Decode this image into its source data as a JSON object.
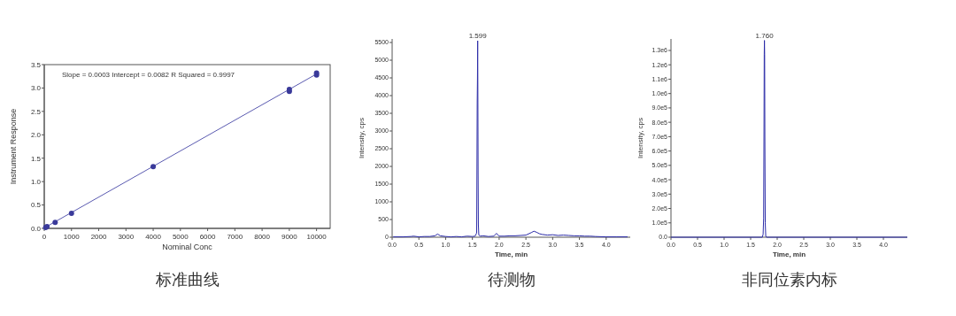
{
  "chart_data": [
    {
      "type": "scatter",
      "title": "标准曲线",
      "xlabel": "Nominal Conc",
      "ylabel": "Instrument Response",
      "annotations": [
        "Slope = 0.0003 Intercept = 0.0082 R Squared = 0.9997"
      ],
      "marker": "circle",
      "xlim": [
        0,
        10500
      ],
      "xticks": [
        0,
        1000,
        2000,
        3000,
        4000,
        5000,
        6000,
        7000,
        8000,
        9000,
        10000
      ],
      "ylim": [
        0,
        3.5
      ],
      "yticks": [
        {
          "value": 0,
          "label": "0.0"
        },
        {
          "value": 0.5,
          "label": "0.5"
        },
        {
          "value": 1,
          "label": "1.0"
        },
        {
          "value": 1.5,
          "label": "1.5"
        },
        {
          "value": 2,
          "label": "2.0"
        },
        {
          "value": 2.5,
          "label": "2.5"
        },
        {
          "value": 3,
          "label": "3.0"
        },
        {
          "value": 3.5,
          "label": "3.5"
        }
      ],
      "series": [
        {
          "color": "#3a3a9a",
          "x": [
            50,
            100,
            400,
            1000,
            4000,
            9000,
            9000,
            10000,
            10000
          ],
          "values": [
            0.02,
            0.04,
            0.13,
            0.32,
            1.32,
            2.93,
            2.97,
            3.28,
            3.32
          ]
        },
        {
          "type": "line",
          "color": "#5a5ab0",
          "marker": "none",
          "x": [
            0,
            10000
          ],
          "values": [
            0.01,
            3.3
          ]
        }
      ]
    },
    {
      "type": "line",
      "title": "待测物",
      "xlabel": "Time, min",
      "ylabel": "Intensity, cps",
      "annotations": [
        {
          "text": "1.599",
          "x": 1.599,
          "y": 5550
        }
      ],
      "xlim": [
        0,
        4.45
      ],
      "xticks": [
        {
          "value": 0,
          "label": "0.0"
        },
        {
          "value": 0.5,
          "label": "0.5"
        },
        {
          "value": 1,
          "label": "1.0"
        },
        {
          "value": 1.5,
          "label": "1.5"
        },
        {
          "value": 2,
          "label": "2.0"
        },
        {
          "value": 2.5,
          "label": "2.5"
        },
        {
          "value": 3,
          "label": "3.0"
        },
        {
          "value": 3.5,
          "label": "3.5"
        },
        {
          "value": 4,
          "label": "4.0"
        }
      ],
      "ylim": [
        0,
        5600
      ],
      "yticks": [
        0,
        500,
        1000,
        1500,
        2000,
        2500,
        3000,
        3500,
        4000,
        4500,
        5000,
        5500
      ],
      "series": [
        {
          "color": "#2b2ba8",
          "x": [
            0.02,
            0.2,
            0.35,
            0.4,
            0.5,
            0.6,
            0.7,
            0.8,
            0.85,
            0.9,
            1.0,
            1.1,
            1.2,
            1.3,
            1.4,
            1.5,
            1.55,
            1.58,
            1.585,
            1.59,
            1.595,
            1.599,
            1.603,
            1.607,
            1.612,
            1.62,
            1.65,
            1.7,
            1.8,
            1.9,
            1.95,
            2.0,
            2.1,
            2.2,
            2.3,
            2.4,
            2.5,
            2.6,
            2.65,
            2.7,
            2.75,
            2.8,
            2.9,
            3.0,
            3.1,
            3.2,
            3.3,
            3.4,
            3.5,
            3.6,
            3.7,
            3.8,
            4.0,
            4.2,
            4.4
          ],
          "values": [
            10,
            10,
            20,
            30,
            10,
            20,
            20,
            40,
            90,
            40,
            20,
            10,
            20,
            10,
            30,
            20,
            30,
            120,
            1850,
            3800,
            4500,
            5550,
            3800,
            1800,
            350,
            60,
            30,
            40,
            20,
            30,
            110,
            30,
            30,
            40,
            40,
            50,
            60,
            130,
            170,
            140,
            100,
            80,
            60,
            70,
            50,
            60,
            50,
            40,
            40,
            30,
            30,
            20,
            10,
            10,
            10
          ]
        }
      ]
    },
    {
      "type": "line",
      "title": "非同位素内标",
      "xlabel": "Time, min",
      "ylabel": "Intensity, cps",
      "annotations": [
        {
          "text": "1.760",
          "x": 1.76,
          "y": 1370000
        }
      ],
      "xlim": [
        0,
        4.45
      ],
      "xticks": [
        {
          "value": 0,
          "label": "0.0"
        },
        {
          "value": 0.5,
          "label": "0.5"
        },
        {
          "value": 1,
          "label": "1.0"
        },
        {
          "value": 1.5,
          "label": "1.5"
        },
        {
          "value": 2,
          "label": "2.0"
        },
        {
          "value": 2.5,
          "label": "2.5"
        },
        {
          "value": 3,
          "label": "3.0"
        },
        {
          "value": 3.5,
          "label": "3.5"
        },
        {
          "value": 4,
          "label": "4.0"
        }
      ],
      "ylim": [
        0,
        1380000
      ],
      "yticks": [
        {
          "value": 0,
          "label": "0.0"
        },
        {
          "value": 100000,
          "label": "1.0e5"
        },
        {
          "value": 200000,
          "label": "2.0e5"
        },
        {
          "value": 300000,
          "label": "3.0e5"
        },
        {
          "value": 400000,
          "label": "4.0e5"
        },
        {
          "value": 500000,
          "label": "5.0e5"
        },
        {
          "value": 600000,
          "label": "6.0e5"
        },
        {
          "value": 700000,
          "label": "7.0e5"
        },
        {
          "value": 800000,
          "label": "8.0e5"
        },
        {
          "value": 900000,
          "label": "9.0e5"
        },
        {
          "value": 1000000,
          "label": "1.0e6"
        },
        {
          "value": 1100000,
          "label": "1.1e6"
        },
        {
          "value": 1200000,
          "label": "1.2e6"
        },
        {
          "value": 1300000,
          "label": "1.3e6"
        }
      ],
      "series": [
        {
          "color": "#2b2ba8",
          "x": [
            0,
            0.5,
            1.0,
            1.5,
            1.72,
            1.735,
            1.745,
            1.752,
            1.756,
            1.76,
            1.764,
            1.768,
            1.775,
            1.785,
            1.8,
            2.0,
            2.5,
            3.0,
            3.5,
            4.0,
            4.45
          ],
          "values": [
            0,
            0,
            0,
            0,
            0,
            20000,
            130000,
            770000,
            1270000,
            1370000,
            1270000,
            690000,
            100000,
            5000,
            0,
            0,
            0,
            0,
            0,
            0,
            0
          ]
        }
      ]
    }
  ]
}
